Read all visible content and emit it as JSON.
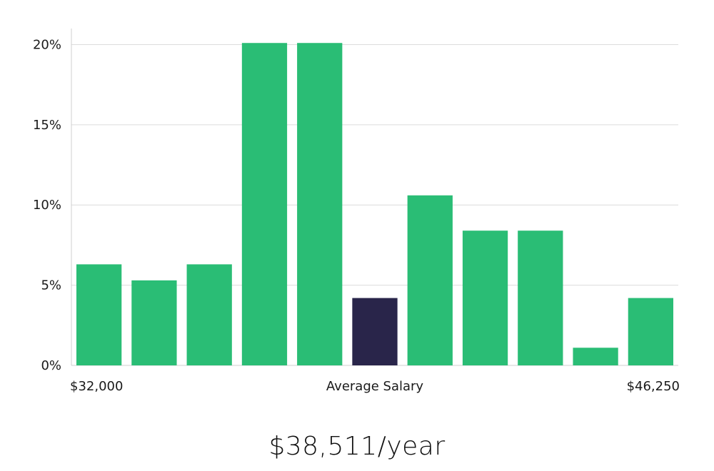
{
  "chart_data": {
    "type": "bar",
    "title": "",
    "xlabel": "Average Salary",
    "ylabel": "",
    "x_range_labels": {
      "min": "$32,000",
      "max": "$46,250"
    },
    "ylim": [
      0,
      0.21
    ],
    "y_ticks": [
      {
        "value": 0,
        "label": "0%"
      },
      {
        "value": 0.05,
        "label": "5%"
      },
      {
        "value": 0.1,
        "label": "10%"
      },
      {
        "value": 0.15,
        "label": "15%"
      },
      {
        "value": 0.2,
        "label": "20%"
      }
    ],
    "grid": true,
    "values": [
      0.063,
      0.053,
      0.063,
      0.201,
      0.201,
      0.042,
      0.106,
      0.084,
      0.084,
      0.011,
      0.042
    ],
    "highlight_index": 5,
    "colors": {
      "bar": "#2abd75",
      "highlight": "#29254a"
    }
  },
  "summary": {
    "average_salary": "$38,511/year"
  }
}
